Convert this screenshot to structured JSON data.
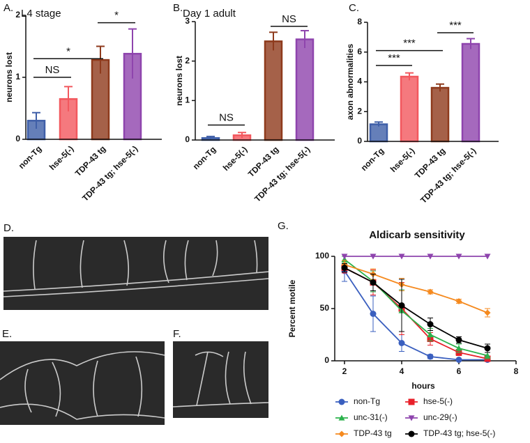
{
  "chart_data": [
    {
      "type": "bar",
      "panel": "A.",
      "title": "L4 stage",
      "ylabel": "neurons lost",
      "categories": [
        "non-Tg",
        "hse-5(-)",
        "TDP-43 tg",
        "TDP-43 tg; hse-5(-)"
      ],
      "values": [
        0.3,
        0.65,
        1.28,
        1.38
      ],
      "errors": [
        0.13,
        0.2,
        0.22,
        0.4
      ],
      "colors": [
        "#3f5fa8",
        "#f2585e",
        "#8e3a1c",
        "#8e44ad"
      ],
      "ylim": [
        0,
        2
      ],
      "yticks": [
        0,
        1,
        2
      ],
      "annotations": [
        {
          "label": "NS",
          "from": 0,
          "to": 1,
          "y": 1.0
        },
        {
          "label": "*",
          "from": 0,
          "to": 2,
          "y": 1.3
        },
        {
          "label": "*",
          "from": 2,
          "to": 3,
          "y": 1.88
        }
      ]
    },
    {
      "type": "bar",
      "panel": "B.",
      "title": "Day 1 adult",
      "ylabel": "neurons lost",
      "categories": [
        "non-Tg",
        "hse-5(-)",
        "TDP-43 tg",
        "TDP-43 tg; hse-5(-)"
      ],
      "values": [
        0.05,
        0.12,
        2.5,
        2.55
      ],
      "errors": [
        0.04,
        0.07,
        0.23,
        0.22
      ],
      "colors": [
        "#3f5fa8",
        "#f2585e",
        "#8e3a1c",
        "#8e44ad"
      ],
      "ylim": [
        0,
        3
      ],
      "yticks": [
        0,
        1,
        2,
        3
      ],
      "annotations": [
        {
          "label": "NS",
          "from": 0,
          "to": 1,
          "y": 0.38
        },
        {
          "label": "NS",
          "from": 2,
          "to": 3,
          "y": 2.88
        }
      ]
    },
    {
      "type": "bar",
      "panel": "C.",
      "ylabel": "axon abnormalities",
      "categories": [
        "non-Tg",
        "hse-5(-)",
        "TDP-43 tg",
        "TDP-43 tg; hse-5(-)"
      ],
      "values": [
        1.15,
        4.35,
        3.6,
        6.55
      ],
      "errors": [
        0.15,
        0.25,
        0.25,
        0.35
      ],
      "colors": [
        "#3f5fa8",
        "#f2585e",
        "#8e3a1c",
        "#8e44ad"
      ],
      "ylim": [
        0,
        8
      ],
      "yticks": [
        0,
        2,
        4,
        6,
        8
      ],
      "annotations": [
        {
          "label": "***",
          "from": 0,
          "to": 1,
          "y": 5.1
        },
        {
          "label": "***",
          "from": 0,
          "to": 2,
          "y": 6.1
        },
        {
          "label": "***",
          "from": 2,
          "to": 3,
          "y": 7.3
        }
      ]
    },
    {
      "type": "line",
      "panel": "G.",
      "title": "Aldicarb sensitivity",
      "ylabel": "Percent motile",
      "xlabel": "hours",
      "x": [
        2,
        3,
        4,
        5,
        6,
        7
      ],
      "xlim": [
        2,
        8
      ],
      "xticks": [
        2,
        4,
        6,
        8
      ],
      "ylim": [
        0,
        100
      ],
      "yticks": [
        0,
        50,
        100
      ],
      "series": [
        {
          "name": "non-Tg",
          "color": "#3a5fbf",
          "marker": "circle",
          "values": [
            86,
            45,
            17,
            4,
            1,
            1
          ],
          "errors": [
            10,
            17,
            8,
            2,
            1,
            1
          ]
        },
        {
          "name": "hse-5(-)",
          "color": "#e8202a",
          "marker": "square",
          "values": [
            89,
            75,
            50,
            21,
            8,
            2
          ],
          "errors": [
            5,
            12,
            25,
            6,
            3,
            2
          ]
        },
        {
          "name": "unc-31(-)",
          "color": "#2bb24c",
          "marker": "triangle",
          "values": [
            97,
            76,
            48,
            25,
            12,
            5
          ],
          "errors": [
            3,
            10,
            20,
            6,
            4,
            3
          ]
        },
        {
          "name": "unc-29(-)",
          "color": "#8e44ad",
          "marker": "triangle-down",
          "values": [
            100,
            100,
            100,
            100,
            100,
            100
          ],
          "errors": [
            0,
            0,
            0,
            0,
            0,
            0
          ]
        },
        {
          "name": "TDP-43 tg",
          "color": "#f58a1f",
          "marker": "diamond",
          "values": [
            92,
            83,
            73,
            66,
            57,
            46
          ],
          "errors": [
            4,
            5,
            6,
            2,
            2,
            4
          ]
        },
        {
          "name": "TDP-43 tg; hse-5(-)",
          "color": "#000000",
          "marker": "circle",
          "values": [
            89,
            75,
            53,
            35,
            20,
            12
          ],
          "errors": [
            4,
            8,
            25,
            6,
            3,
            4
          ]
        }
      ]
    }
  ],
  "image_panels": [
    {
      "label": "D."
    },
    {
      "label": "E."
    },
    {
      "label": "F."
    }
  ]
}
